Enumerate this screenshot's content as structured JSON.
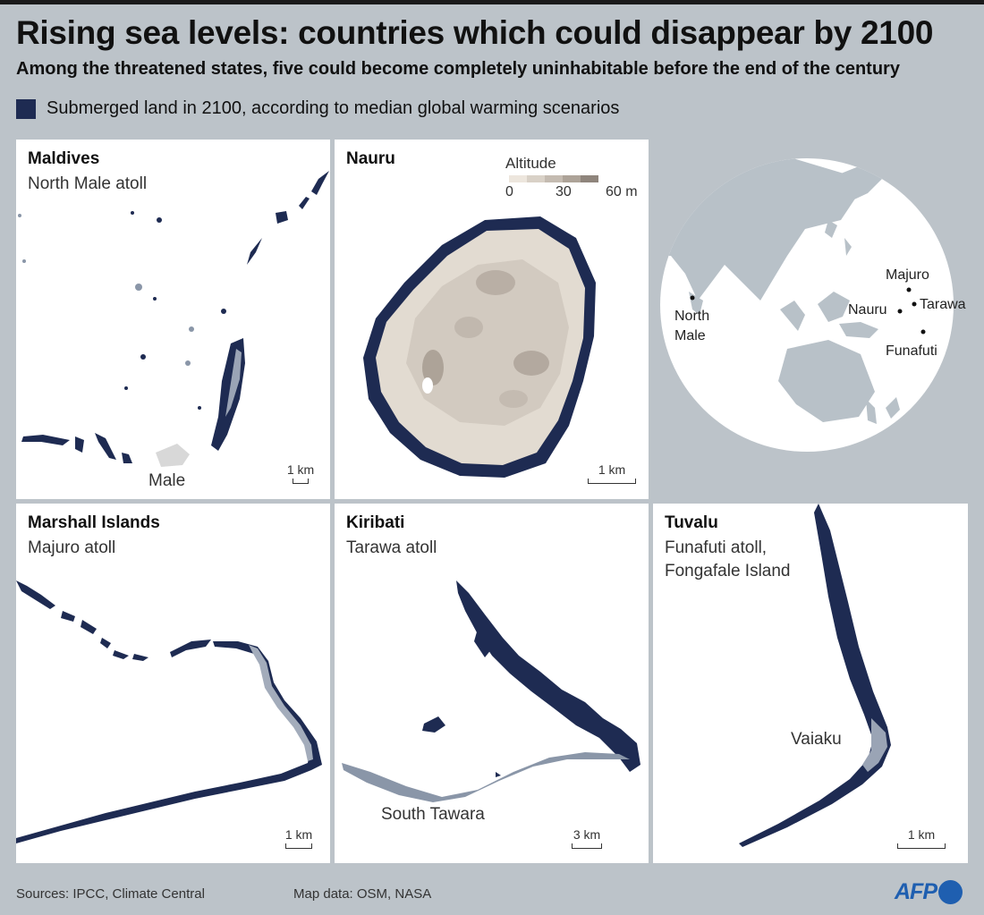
{
  "title": "Rising sea levels: countries which could disappear by 2100",
  "subtitle": "Among the threatened states, five could become completely uninhabitable before the end of the century",
  "legend": {
    "label": "Submerged land in 2100, according to median global warming scenarios",
    "color": "#1e2b52"
  },
  "panels": {
    "maldives": {
      "title": "Maldives",
      "subtitle": "North Male atoll",
      "place": "Male",
      "scale": "1 km"
    },
    "nauru": {
      "title": "Nauru",
      "scale": "1 km",
      "altitude_legend": {
        "title": "Altitude",
        "ticks": [
          "0",
          "30",
          "60 m"
        ],
        "colors": [
          "#ede6dd",
          "#d9d1c7",
          "#c4bbb1",
          "#ada398",
          "#8f857c"
        ]
      }
    },
    "globe": {
      "labels": {
        "north_male": "North Male",
        "majuro": "Majuro",
        "nauru": "Nauru",
        "tarawa": "Tarawa",
        "funafuti": "Funafuti"
      }
    },
    "marshall": {
      "title": "Marshall Islands",
      "subtitle": "Majuro atoll",
      "scale": "1 km"
    },
    "kiribati": {
      "title": "Kiribati",
      "subtitle": "Tarawa atoll",
      "place": "South Tawara",
      "scale": "3 km"
    },
    "tuvalu": {
      "title": "Tuvalu",
      "subtitle_line1": "Funafuti atoll,",
      "subtitle_line2": "Fongafale Island",
      "place": "Vaiaku",
      "scale": "1 km"
    }
  },
  "footer": {
    "sources": "Sources: IPCC, Climate Central",
    "mapdata": "Map data: OSM, NASA",
    "logo": "AFP"
  }
}
